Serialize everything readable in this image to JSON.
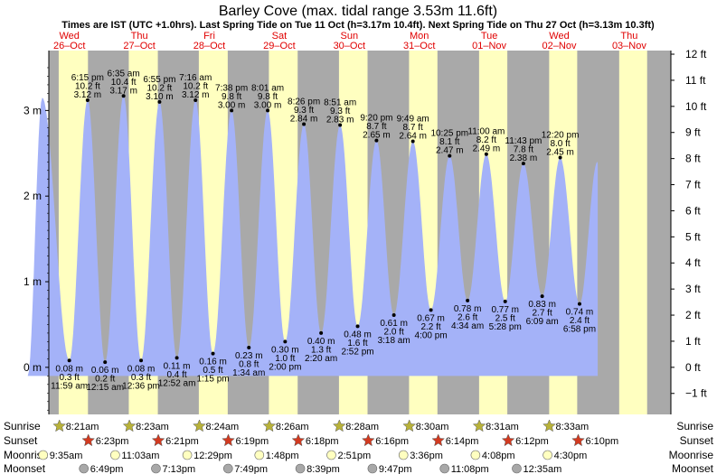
{
  "chart_data": {
    "type": "area",
    "title": "Barley Cove (max. tidal range 3.53m 11.6ft)",
    "subtitle": "Times are IST (UTC +1.0hrs). Last Spring Tide on Tue 11 Oct (h=3.17m 10.4ft). Next Spring Tide on Thu 27 Oct (h=3.13m 10.3ft)",
    "days": [
      {
        "dow": "Wed",
        "date": "26–Oct"
      },
      {
        "dow": "Thu",
        "date": "27–Oct"
      },
      {
        "dow": "Fri",
        "date": "28–Oct"
      },
      {
        "dow": "Sat",
        "date": "29–Oct"
      },
      {
        "dow": "Sun",
        "date": "30–Oct"
      },
      {
        "dow": "Mon",
        "date": "31–Oct"
      },
      {
        "dow": "Tue",
        "date": "01–Nov"
      },
      {
        "dow": "Wed",
        "date": "02–Nov"
      },
      {
        "dow": "Thu",
        "date": "03–Nov"
      }
    ],
    "y_left": {
      "unit": "m",
      "min": -0.55,
      "max": 3.7,
      "ticks": [
        {
          "v": 0,
          "label": "0 m"
        },
        {
          "v": 1,
          "label": "1 m"
        },
        {
          "v": 2,
          "label": "2 m"
        },
        {
          "v": 3,
          "label": "3 m"
        }
      ]
    },
    "y_right": {
      "unit": "ft",
      "ticks": [
        {
          "v": -1,
          "label": "−1 ft"
        },
        {
          "v": 0,
          "label": "0 ft"
        },
        {
          "v": 1,
          "label": "1 ft"
        },
        {
          "v": 2,
          "label": "2 ft"
        },
        {
          "v": 3,
          "label": "3 ft"
        },
        {
          "v": 4,
          "label": "4 ft"
        },
        {
          "v": 5,
          "label": "5 ft"
        },
        {
          "v": 6,
          "label": "6 ft"
        },
        {
          "v": 7,
          "label": "7 ft"
        },
        {
          "v": 8,
          "label": "8 ft"
        },
        {
          "v": 9,
          "label": "9 ft"
        },
        {
          "v": 10,
          "label": "10 ft"
        },
        {
          "v": 11,
          "label": "11 ft"
        },
        {
          "v": 12,
          "label": "12 ft"
        }
      ]
    },
    "daylight": [
      {
        "day": 0,
        "sunrise": 8.35,
        "sunset": 18.383
      },
      {
        "day": 1,
        "sunrise": 8.383,
        "sunset": 18.35
      },
      {
        "day": 2,
        "sunrise": 8.4,
        "sunset": 18.317
      },
      {
        "day": 3,
        "sunrise": 8.433,
        "sunset": 18.3
      },
      {
        "day": 4,
        "sunrise": 8.467,
        "sunset": 18.267
      },
      {
        "day": 5,
        "sunrise": 8.5,
        "sunset": 18.233
      },
      {
        "day": 6,
        "sunrise": 8.517,
        "sunset": 18.2
      },
      {
        "day": 7,
        "sunrise": 8.55,
        "sunset": 18.167
      },
      {
        "day": 8,
        "sunrise": 8.567,
        "sunset": 18.15
      }
    ],
    "tides": [
      {
        "day": 0,
        "hour": 2.7,
        "m": 3.15,
        "type": "high",
        "lines": []
      },
      {
        "day": 0,
        "hour": 11.983,
        "m": 0.08,
        "type": "low",
        "lines": [
          "0.08 m",
          "0.3 ft",
          "11:59 am"
        ]
      },
      {
        "day": 0,
        "hour": 18.25,
        "m": 3.12,
        "type": "high",
        "lines": [
          "6:15 pm",
          "10.2 ft",
          "3.12 m"
        ]
      },
      {
        "day": 1,
        "hour": 0.25,
        "m": 0.06,
        "type": "low",
        "lines": [
          "0.06 m",
          "0.2 ft",
          "12:15 am"
        ]
      },
      {
        "day": 1,
        "hour": 6.583,
        "m": 3.17,
        "type": "high",
        "lines": [
          "6:35 am",
          "10.4 ft",
          "3.17 m"
        ]
      },
      {
        "day": 1,
        "hour": 12.6,
        "m": 0.08,
        "type": "low",
        "lines": [
          "0.08 m",
          "0.3 ft",
          "12:36 pm"
        ]
      },
      {
        "day": 1,
        "hour": 18.917,
        "m": 3.1,
        "type": "high",
        "lines": [
          "6:55 pm",
          "10.2 ft",
          "3.10 m"
        ]
      },
      {
        "day": 2,
        "hour": 0.867,
        "m": 0.11,
        "type": "low",
        "lines": [
          "0.11 m",
          "0.4 ft",
          "12:52 am"
        ]
      },
      {
        "day": 2,
        "hour": 7.267,
        "m": 3.12,
        "type": "high",
        "lines": [
          "7:16 am",
          "10.2 ft",
          "3.12 m"
        ]
      },
      {
        "day": 2,
        "hour": 13.25,
        "m": 0.16,
        "type": "low",
        "lines": [
          "0.16 m",
          "0.5 ft",
          "1:15 pm"
        ]
      },
      {
        "day": 2,
        "hour": 19.633,
        "m": 3.0,
        "type": "high",
        "lines": [
          "7:38 pm",
          "9.8 ft",
          "3.00 m"
        ]
      },
      {
        "day": 3,
        "hour": 1.567,
        "m": 0.23,
        "type": "low",
        "lines": [
          "0.23 m",
          "0.8 ft",
          "1:34 am"
        ]
      },
      {
        "day": 3,
        "hour": 8.017,
        "m": 3.0,
        "type": "high",
        "lines": [
          "8:01 am",
          "9.8 ft",
          "3.00 m"
        ]
      },
      {
        "day": 3,
        "hour": 14.0,
        "m": 0.3,
        "type": "low",
        "lines": [
          "0.30 m",
          "1.0 ft",
          "2:00 pm"
        ]
      },
      {
        "day": 3,
        "hour": 20.433,
        "m": 2.84,
        "type": "high",
        "lines": [
          "8:26 pm",
          "9.3 ft",
          "2.84 m"
        ]
      },
      {
        "day": 4,
        "hour": 2.333,
        "m": 0.4,
        "type": "low",
        "lines": [
          "0.40 m",
          "1.3 ft",
          "2:20 am"
        ]
      },
      {
        "day": 4,
        "hour": 8.85,
        "m": 2.83,
        "type": "high",
        "lines": [
          "8:51 am",
          "9.3 ft",
          "2.83 m"
        ]
      },
      {
        "day": 4,
        "hour": 14.867,
        "m": 0.48,
        "type": "low",
        "lines": [
          "0.48 m",
          "1.6 ft",
          "2:52 pm"
        ]
      },
      {
        "day": 4,
        "hour": 21.333,
        "m": 2.65,
        "type": "high",
        "lines": [
          "9:20 pm",
          "8.7 ft",
          "2.65 m"
        ]
      },
      {
        "day": 5,
        "hour": 3.3,
        "m": 0.61,
        "type": "low",
        "lines": [
          "0.61 m",
          "2.0 ft",
          "3:18 am"
        ]
      },
      {
        "day": 5,
        "hour": 9.817,
        "m": 2.64,
        "type": "high",
        "lines": [
          "9:49 am",
          "8.7 ft",
          "2.64 m"
        ]
      },
      {
        "day": 5,
        "hour": 16.0,
        "m": 0.67,
        "type": "low",
        "lines": [
          "0.67 m",
          "2.2 ft",
          "4:00 pm"
        ]
      },
      {
        "day": 5,
        "hour": 22.417,
        "m": 2.47,
        "type": "high",
        "lines": [
          "10:25 pm",
          "8.1 ft",
          "2.47 m"
        ]
      },
      {
        "day": 6,
        "hour": 4.567,
        "m": 0.78,
        "type": "low",
        "lines": [
          "0.78 m",
          "2.6 ft",
          "4:34 am"
        ]
      },
      {
        "day": 6,
        "hour": 11.0,
        "m": 2.49,
        "type": "high",
        "lines": [
          "11:00 am",
          "8.2 ft",
          "2.49 m"
        ]
      },
      {
        "day": 6,
        "hour": 17.467,
        "m": 0.77,
        "type": "low",
        "lines": [
          "0.77 m",
          "2.5 ft",
          "5:28 pm"
        ]
      },
      {
        "day": 6,
        "hour": 23.717,
        "m": 2.38,
        "type": "high",
        "lines": [
          "11:43 pm",
          "7.8 ft",
          "2.38 m"
        ]
      },
      {
        "day": 7,
        "hour": 6.15,
        "m": 0.83,
        "type": "low",
        "lines": [
          "0.83 m",
          "2.7 ft",
          "6:09 am"
        ]
      },
      {
        "day": 7,
        "hour": 12.333,
        "m": 2.45,
        "type": "high",
        "lines": [
          "12:20 pm",
          "8.0 ft",
          "2.45 m"
        ]
      },
      {
        "day": 7,
        "hour": 18.967,
        "m": 0.74,
        "type": "low",
        "lines": [
          "0.74 m",
          "2.4 ft",
          "6:58 pm"
        ]
      },
      {
        "day": 8,
        "hour": 1.1,
        "m": 2.4,
        "type": "high",
        "lines": []
      }
    ],
    "curve_end": {
      "day": 8,
      "hour": 1.2
    },
    "bottom_rows": {
      "labels": [
        "Sunrise",
        "Sunset",
        "Moonrise",
        "Moonset"
      ],
      "sunrise": [
        "8:21am",
        "8:23am",
        "8:24am",
        "8:26am",
        "8:28am",
        "8:30am",
        "8:31am",
        "8:33am"
      ],
      "sunset": [
        "6:23pm",
        "6:21pm",
        "6:19pm",
        "6:18pm",
        "6:16pm",
        "6:14pm",
        "6:12pm",
        "6:10pm"
      ],
      "moonrise": [
        "9:35am",
        "11:03am",
        "12:29pm",
        "1:48pm",
        "2:51pm",
        "3:36pm",
        "4:08pm",
        "4:30pm"
      ],
      "moonset": [
        "6:49pm",
        "7:13pm",
        "7:49pm",
        "8:39pm",
        "9:47pm",
        "11:08pm",
        "12:35am",
        ""
      ]
    },
    "colors": {
      "night": "#a9a9a9",
      "day": "#ffffc0",
      "water": "#a4b2f8",
      "day_header": "#e00000",
      "sun_star": "#b8b23a",
      "sunset_star": "#d23a20",
      "moonrise": "#ffffc0",
      "moonset": "#a8a8a8"
    }
  }
}
